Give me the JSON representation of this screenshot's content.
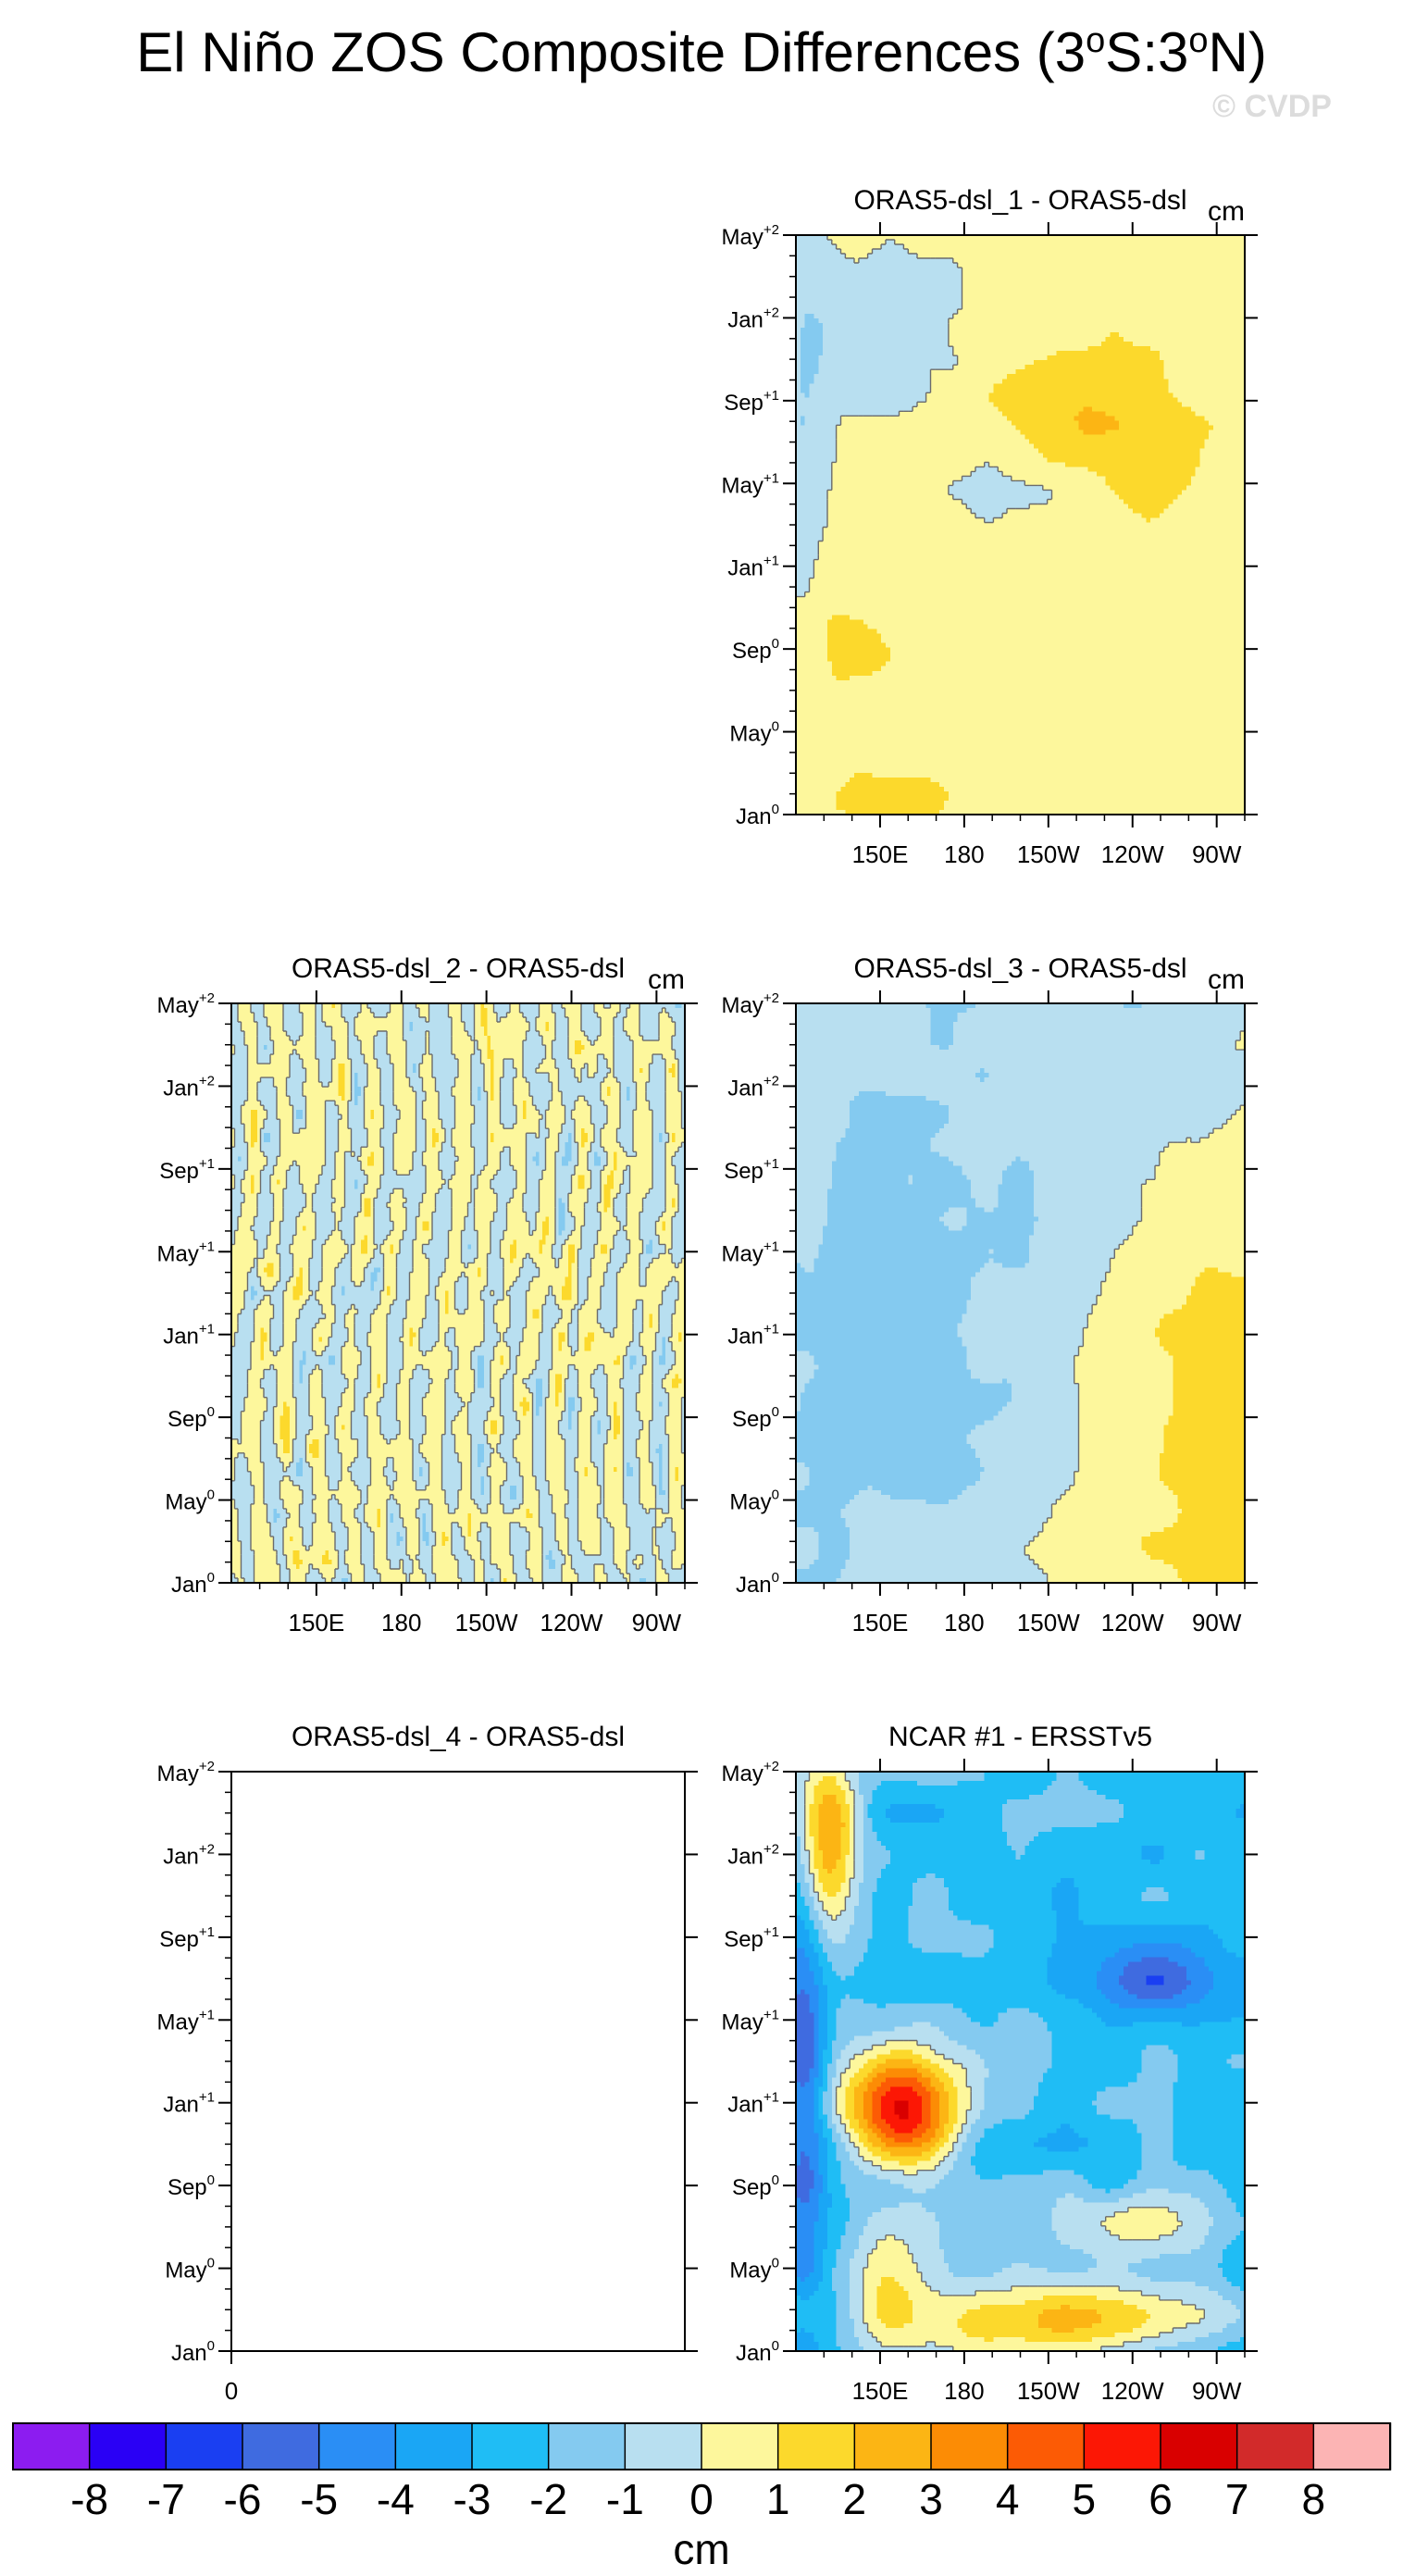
{
  "page": {
    "title": "El Niño ZOS Composite Differences",
    "title_region": "(3°S:3°N)",
    "watermark": "© CVDP",
    "colorbar_units": "cm"
  },
  "colors": {
    "palette": [
      "#8c1cf0",
      "#2a00f5",
      "#1a3ff2",
      "#3f6be0",
      "#2a8ef5",
      "#1aa6f5",
      "#1fbdf5",
      "#84caf0",
      "#b8dff0",
      "#fdf79c",
      "#fcd92c",
      "#fcb514",
      "#fc8c05",
      "#fc5b05",
      "#fc1705",
      "#d90000",
      "#d22a2a",
      "#fcb4b4"
    ],
    "contour_line": "#6b6b6b",
    "frame": "#000000"
  },
  "chart_data": [
    {
      "type": "heatmap",
      "title": "ORAS5-dsl_1 - ORAS5-dsl",
      "units": "cm",
      "x_tick_labels": [
        "150E",
        "180",
        "150W",
        "120W",
        "90W"
      ],
      "x_ticks_deg_east": [
        150,
        180,
        210,
        240,
        270
      ],
      "xlim_deg_east": [
        120,
        280
      ],
      "y_tick_labels": [
        "Jan0",
        "May0",
        "Sep0",
        "Jan+1",
        "May+1",
        "Sep+1",
        "Jan+2",
        "May+2"
      ],
      "y_ticks_month_index": [
        0,
        4,
        8,
        12,
        16,
        20,
        24,
        28
      ],
      "ylim_month_index": [
        0,
        28
      ],
      "has_data": true,
      "pattern": "ens1",
      "levels": [
        -8,
        -7,
        -6,
        -5,
        -4,
        -3,
        -2,
        -1,
        0,
        1,
        2,
        3,
        4,
        5,
        6,
        7,
        8
      ]
    },
    {
      "type": "heatmap",
      "title": "ORAS5-dsl_2 - ORAS5-dsl",
      "units": "cm",
      "x_tick_labels": [
        "150E",
        "180",
        "150W",
        "120W",
        "90W"
      ],
      "x_ticks_deg_east": [
        150,
        180,
        210,
        240,
        270
      ],
      "xlim_deg_east": [
        120,
        280
      ],
      "y_tick_labels": [
        "Jan0",
        "May0",
        "Sep0",
        "Jan+1",
        "May+1",
        "Sep+1",
        "Jan+2",
        "May+2"
      ],
      "y_ticks_month_index": [
        0,
        4,
        8,
        12,
        16,
        20,
        24,
        28
      ],
      "ylim_month_index": [
        0,
        28
      ],
      "has_data": true,
      "pattern": "ens2",
      "levels": [
        -8,
        -7,
        -6,
        -5,
        -4,
        -3,
        -2,
        -1,
        0,
        1,
        2,
        3,
        4,
        5,
        6,
        7,
        8
      ]
    },
    {
      "type": "heatmap",
      "title": "ORAS5-dsl_3 - ORAS5-dsl",
      "units": "cm",
      "x_tick_labels": [
        "150E",
        "180",
        "150W",
        "120W",
        "90W"
      ],
      "x_ticks_deg_east": [
        150,
        180,
        210,
        240,
        270
      ],
      "xlim_deg_east": [
        120,
        280
      ],
      "y_tick_labels": [
        "Jan0",
        "May0",
        "Sep0",
        "Jan+1",
        "May+1",
        "Sep+1",
        "Jan+2",
        "May+2"
      ],
      "y_ticks_month_index": [
        0,
        4,
        8,
        12,
        16,
        20,
        24,
        28
      ],
      "ylim_month_index": [
        0,
        28
      ],
      "has_data": true,
      "pattern": "ens3",
      "levels": [
        -8,
        -7,
        -6,
        -5,
        -4,
        -3,
        -2,
        -1,
        0,
        1,
        2,
        3,
        4,
        5,
        6,
        7,
        8
      ]
    },
    {
      "type": "heatmap",
      "title": "ORAS5-dsl_4 - ORAS5-dsl",
      "units": "",
      "x_tick_labels": [
        "0"
      ],
      "y_tick_labels": [
        "Jan0",
        "May0",
        "Sep0",
        "Jan+1",
        "May+1",
        "Sep+1",
        "Jan+2",
        "May+2"
      ],
      "y_ticks_month_index": [
        0,
        4,
        8,
        12,
        16,
        20,
        24,
        28
      ],
      "ylim_month_index": [
        0,
        28
      ],
      "has_data": false
    },
    {
      "type": "heatmap",
      "title": "NCAR #1 - ERSSTv5",
      "units": "",
      "x_tick_labels": [
        "150E",
        "180",
        "150W",
        "120W",
        "90W"
      ],
      "x_ticks_deg_east": [
        150,
        180,
        210,
        240,
        270
      ],
      "xlim_deg_east": [
        120,
        280
      ],
      "y_tick_labels": [
        "Jan0",
        "May0",
        "Sep0",
        "Jan+1",
        "May+1",
        "Sep+1",
        "Jan+2",
        "May+2"
      ],
      "y_ticks_month_index": [
        0,
        4,
        8,
        12,
        16,
        20,
        24,
        28
      ],
      "ylim_month_index": [
        0,
        28
      ],
      "has_data": true,
      "pattern": "ncar",
      "levels": [
        -8,
        -7,
        -6,
        -5,
        -4,
        -3,
        -2,
        -1,
        0,
        1,
        2,
        3,
        4,
        5,
        6,
        7,
        8
      ]
    }
  ],
  "colorbar": {
    "labels": [
      "-8",
      "-7",
      "-6",
      "-5",
      "-4",
      "-3",
      "-2",
      "-1",
      "0",
      "1",
      "2",
      "3",
      "4",
      "5",
      "6",
      "7",
      "8"
    ],
    "units": "cm"
  }
}
